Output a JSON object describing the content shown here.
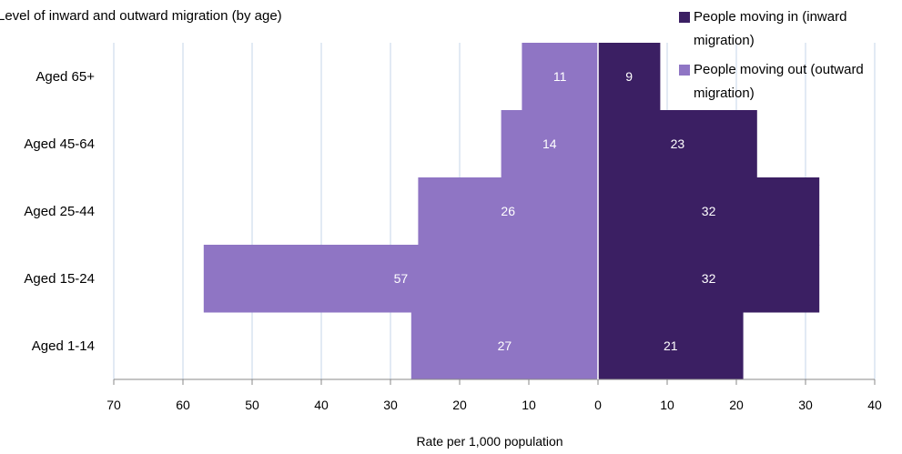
{
  "chart_data": {
    "type": "bar",
    "orientation": "horizontal-population-pyramid",
    "title": "Level of inward and outward migration (by age)",
    "xlabel": "Rate per 1,000 population",
    "ylabel": "",
    "categories": [
      "Aged 65+",
      "Aged 45-64",
      "Aged 25-44",
      "Aged 15-24",
      "Aged 1-14"
    ],
    "series": [
      {
        "name": "People moving in (inward migration)",
        "color": "#3b1f63",
        "direction": "right",
        "values": [
          9,
          23,
          32,
          32,
          21
        ]
      },
      {
        "name": "People moving out (outward migration)",
        "color": "#8f75c4",
        "direction": "left",
        "values": [
          11,
          14,
          26,
          57,
          27
        ]
      }
    ],
    "xlim": [
      -70,
      40
    ],
    "x_tick_labels": [
      "70",
      "60",
      "50",
      "40",
      "30",
      "20",
      "10",
      "0",
      "10",
      "20",
      "30",
      "40"
    ],
    "grid": "vertical",
    "legend_position": "top-right"
  }
}
